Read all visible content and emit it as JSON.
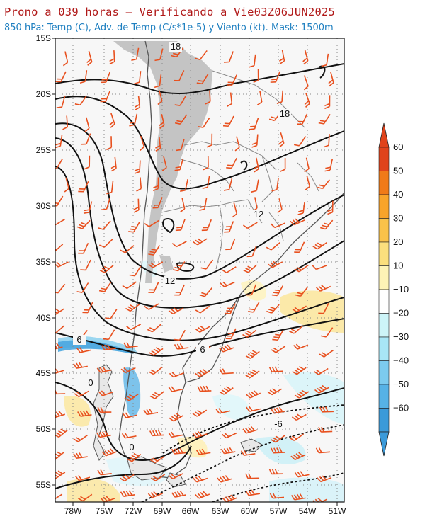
{
  "header": {
    "title": "Prono a 039 horas — Verificando a Vie03Z06JUN2025",
    "subtitle": "850 hPa: Temp (C), Adv. de Temp (C/s*1e-5) y Viento (kt). Mask: 1500m"
  },
  "map": {
    "lat_range": [
      -56,
      -15
    ],
    "lon_range": [
      -80,
      -50.5
    ],
    "lat_labels": [
      "15S",
      "20S",
      "25S",
      "30S",
      "35S",
      "40S",
      "45S",
      "50S",
      "55S"
    ],
    "lon_labels": [
      "78W",
      "75W",
      "72W",
      "69W",
      "66W",
      "63W",
      "60W",
      "57W",
      "54W",
      "51W"
    ],
    "contour_labels": [
      "18",
      "18",
      "12",
      "12",
      "6",
      "6",
      "0",
      "0",
      "-6"
    ],
    "mask_color": "#c4c4c4",
    "barb_color": "#e8501e"
  },
  "colorbar": {
    "labels": [
      "60",
      "50",
      "40",
      "30",
      "20",
      "10",
      "−10",
      "−20",
      "−30",
      "−40",
      "−50",
      "−60"
    ],
    "colors": [
      "#e0431b",
      "#f07a18",
      "#f8a42a",
      "#f9c24a",
      "#fbdf7d",
      "#fdf3b6",
      "#ffffff",
      "#cdf4f8",
      "#a8e6f6",
      "#7ccbef",
      "#56b2e6",
      "#3b9ad9"
    ]
  }
}
